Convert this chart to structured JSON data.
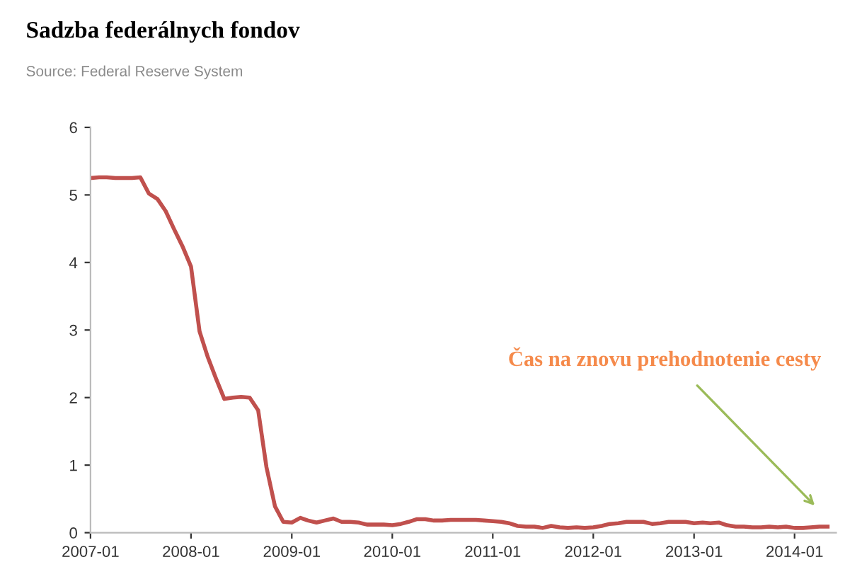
{
  "chart_data": {
    "type": "line",
    "title": "Sadzba federálnych fondov",
    "annotations": [
      "Source: Federal Reserve System",
      "Čas na znovu prehodnotenie cesty"
    ],
    "x": [
      "2007-01",
      "2007-02",
      "2007-03",
      "2007-04",
      "2007-05",
      "2007-06",
      "2007-07",
      "2007-08",
      "2007-09",
      "2007-10",
      "2007-11",
      "2007-12",
      "2008-01",
      "2008-02",
      "2008-03",
      "2008-04",
      "2008-05",
      "2008-06",
      "2008-07",
      "2008-08",
      "2008-09",
      "2008-10",
      "2008-11",
      "2008-12",
      "2009-01",
      "2009-02",
      "2009-03",
      "2009-04",
      "2009-05",
      "2009-06",
      "2009-07",
      "2009-08",
      "2009-09",
      "2009-10",
      "2009-11",
      "2009-12",
      "2010-01",
      "2010-02",
      "2010-03",
      "2010-04",
      "2010-05",
      "2010-06",
      "2010-07",
      "2010-08",
      "2010-09",
      "2010-10",
      "2010-11",
      "2010-12",
      "2011-01",
      "2011-02",
      "2011-03",
      "2011-04",
      "2011-05",
      "2011-06",
      "2011-07",
      "2011-08",
      "2011-09",
      "2011-10",
      "2011-11",
      "2011-12",
      "2012-01",
      "2012-02",
      "2012-03",
      "2012-04",
      "2012-05",
      "2012-06",
      "2012-07",
      "2012-08",
      "2012-09",
      "2012-10",
      "2012-11",
      "2012-12",
      "2013-01",
      "2013-02",
      "2013-03",
      "2013-04",
      "2013-05",
      "2013-06",
      "2013-07",
      "2013-08",
      "2013-09",
      "2013-10",
      "2013-11",
      "2013-12",
      "2014-01",
      "2014-02",
      "2014-03",
      "2014-04",
      "2014-05"
    ],
    "series": [
      {
        "color": "#c0504d",
        "values": [
          5.25,
          5.26,
          5.26,
          5.25,
          5.25,
          5.25,
          5.26,
          5.02,
          4.94,
          4.76,
          4.49,
          4.24,
          3.94,
          2.98,
          2.61,
          2.28,
          1.98,
          2.0,
          2.01,
          2.0,
          1.81,
          0.97,
          0.39,
          0.16,
          0.15,
          0.22,
          0.18,
          0.15,
          0.18,
          0.21,
          0.16,
          0.16,
          0.15,
          0.12,
          0.12,
          0.12,
          0.11,
          0.13,
          0.16,
          0.2,
          0.2,
          0.18,
          0.18,
          0.19,
          0.19,
          0.19,
          0.19,
          0.18,
          0.17,
          0.16,
          0.14,
          0.1,
          0.09,
          0.09,
          0.07,
          0.1,
          0.08,
          0.07,
          0.08,
          0.07,
          0.08,
          0.1,
          0.13,
          0.14,
          0.16,
          0.16,
          0.16,
          0.13,
          0.14,
          0.16,
          0.16,
          0.16,
          0.14,
          0.15,
          0.14,
          0.15,
          0.11,
          0.09,
          0.09,
          0.08,
          0.08,
          0.09,
          0.08,
          0.09,
          0.07,
          0.07,
          0.08,
          0.09,
          0.09
        ]
      }
    ],
    "xlim": [
      "2007-01",
      "2014-06"
    ],
    "xticks": [
      {
        "value": "2007-01",
        "label": "2007-01"
      },
      {
        "value": "2008-01",
        "label": "2008-01"
      },
      {
        "value": "2009-01",
        "label": "2009-01"
      },
      {
        "value": "2010-01",
        "label": "2010-01"
      },
      {
        "value": "2011-01",
        "label": "2011-01"
      },
      {
        "value": "2012-01",
        "label": "2012-01"
      },
      {
        "value": "2013-01",
        "label": "2013-01"
      },
      {
        "value": "2014-01",
        "label": "2014-01"
      }
    ],
    "ylim": [
      0,
      6
    ],
    "yticks": [
      0,
      1,
      2,
      3,
      4,
      5,
      6
    ],
    "grid": false,
    "marker": "none",
    "line_style": "solid"
  }
}
